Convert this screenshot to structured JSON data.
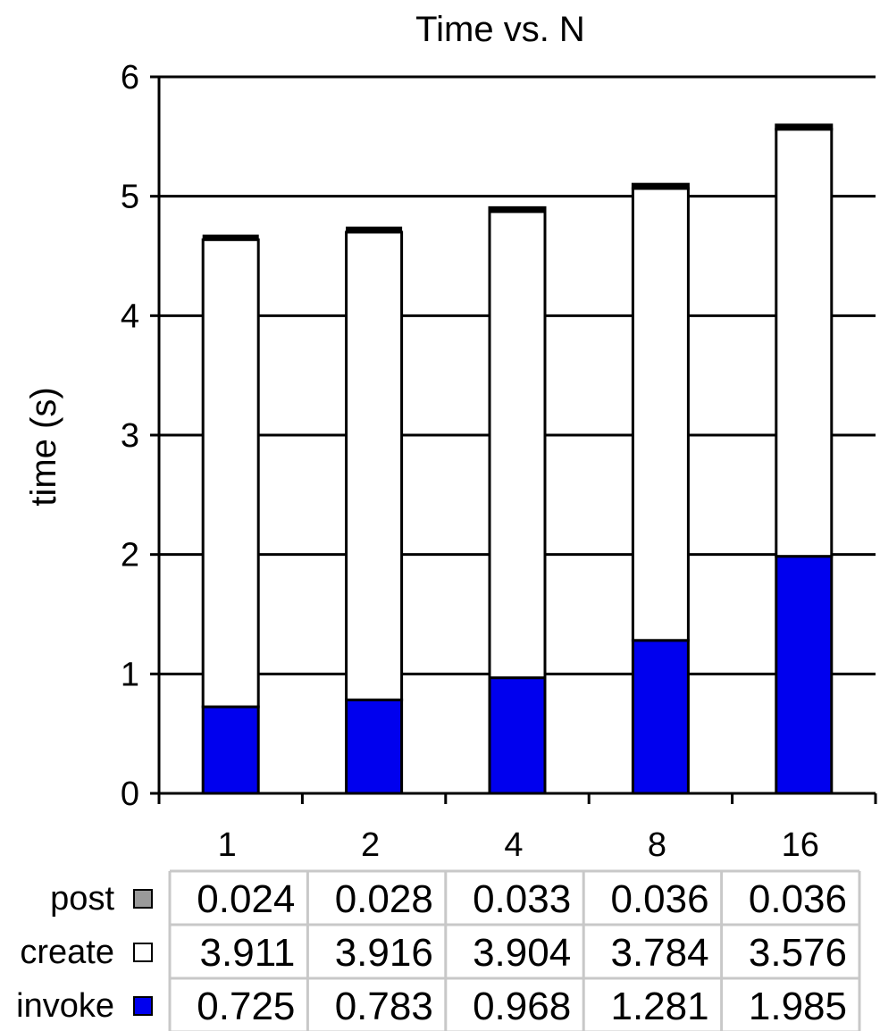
{
  "chart_data": {
    "type": "bar",
    "stacked": true,
    "title": "Time vs. N",
    "xlabel": "",
    "ylabel": "time (s)",
    "ylim": [
      0,
      6
    ],
    "yticks": [
      0,
      1,
      2,
      3,
      4,
      5,
      6
    ],
    "grid": true,
    "categories": [
      "1",
      "2",
      "4",
      "8",
      "16"
    ],
    "series": [
      {
        "name": "invoke",
        "values": [
          0.725,
          0.783,
          0.968,
          1.281,
          1.985
        ],
        "color": "#0000ee"
      },
      {
        "name": "create",
        "values": [
          3.911,
          3.916,
          3.904,
          3.784,
          3.576
        ],
        "color": "#ffffff"
      },
      {
        "name": "post",
        "values": [
          0.024,
          0.028,
          0.033,
          0.036,
          0.036
        ],
        "color": "#000000"
      }
    ],
    "data_table": {
      "rows": [
        {
          "name": "post",
          "values": [
            "0.024",
            "0.028",
            "0.033",
            "0.036",
            "0.036"
          ],
          "legend_color": "#9a9a9a"
        },
        {
          "name": "create",
          "values": [
            "3.911",
            "3.916",
            "3.904",
            "3.784",
            "3.576"
          ],
          "legend_color": "#ffffff"
        },
        {
          "name": "invoke",
          "values": [
            "0.725",
            "0.783",
            "0.968",
            "1.281",
            "1.985"
          ],
          "legend_color": "#0000ee"
        }
      ]
    }
  }
}
